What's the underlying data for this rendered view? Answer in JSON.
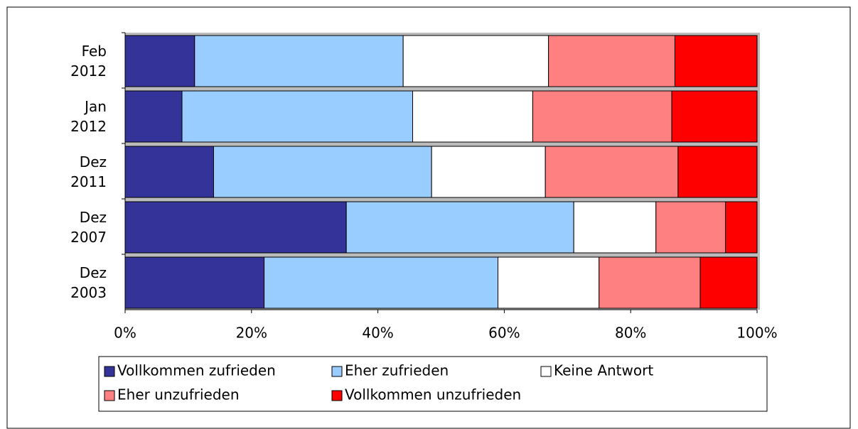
{
  "chart_data": {
    "type": "stacked-bar-100",
    "categories": [
      "Feb 2012",
      "Jan 2012",
      "Dez 2011",
      "Dez 2007",
      "Dez 2003"
    ],
    "series": [
      {
        "name": "Vollkommen zufrieden",
        "color": "#333399",
        "values": [
          11,
          9,
          14,
          35,
          22
        ]
      },
      {
        "name": "Eher zufrieden",
        "color": "#99ccff",
        "values": [
          33,
          36.5,
          34.5,
          36,
          37
        ]
      },
      {
        "name": "Keine Antwort",
        "color": "#ffffff",
        "values": [
          23,
          19,
          18,
          13,
          16
        ]
      },
      {
        "name": "Eher unzufrieden",
        "color": "#ff8080",
        "values": [
          20,
          22,
          21,
          11,
          16
        ]
      },
      {
        "name": "Vollkommen unzufrieden",
        "color": "#ff0000",
        "values": [
          13,
          13.5,
          12.5,
          5,
          9
        ]
      }
    ],
    "xlim": [
      0,
      100
    ],
    "xticks": [
      {
        "value": 0,
        "label": "0%"
      },
      {
        "value": 20,
        "label": "20%"
      },
      {
        "value": 40,
        "label": "40%"
      },
      {
        "value": 60,
        "label": "60%"
      },
      {
        "value": 80,
        "label": "80%"
      },
      {
        "value": 100,
        "label": "100%"
      }
    ],
    "grid": true,
    "legend": "bottom"
  }
}
